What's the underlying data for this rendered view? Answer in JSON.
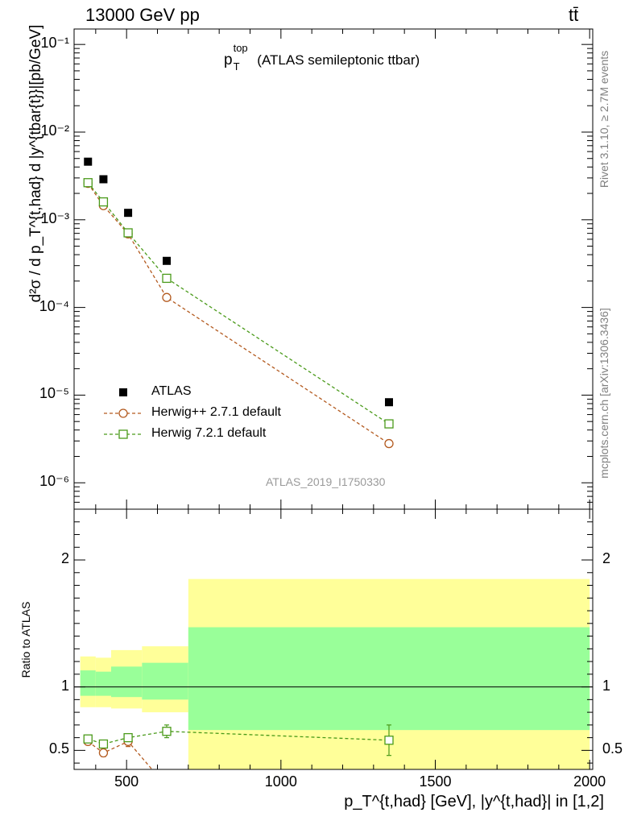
{
  "header": {
    "left": "13000 GeV pp",
    "right": "tt̄"
  },
  "side_texts": {
    "rivet": "Rivet 3.1.10, ≥ 2.7M events",
    "mcplots": "mcplots.cern.ch [arXiv:1306.3436]"
  },
  "chart_data": [
    {
      "type": "scatter",
      "title": "p_T^top (ATLAS semileptonic ttbar)",
      "title_main": "p",
      "title_sup": "top",
      "title_sub": "T",
      "title_rest": " (ATLAS semileptonic ttbar)",
      "ylabel": "d²σ / d p_T^{t,had} d |y^{tbar{t}}|[pb/GeV]",
      "watermark": "ATLAS_2019_I1750330",
      "yscale": "log",
      "ylim": [
        5e-07,
        0.15
      ],
      "xlim": [
        330,
        2010
      ],
      "ytick_labels": [
        "10⁻⁶",
        "10⁻⁵",
        "10⁻⁴",
        "10⁻³",
        "10⁻²",
        "10⁻¹"
      ],
      "legend_position": "lower-left",
      "series": [
        {
          "name": "ATLAS",
          "color": "#000000",
          "marker": "filled-square",
          "x": [
            375,
            425,
            505,
            630,
            1350
          ],
          "y": [
            0.0046,
            0.0029,
            0.0012,
            0.00034,
            8.3e-06
          ]
        },
        {
          "name": "Herwig++ 2.7.1 default",
          "color": "#b35a1f",
          "marker": "open-circle",
          "line": "dashed",
          "x": [
            375,
            425,
            505,
            630,
            1350
          ],
          "y": [
            0.0026,
            0.00145,
            0.00069,
            0.00013,
            2.8e-06
          ]
        },
        {
          "name": "Herwig 7.2.1 default",
          "color": "#4a9a1a",
          "marker": "open-square",
          "line": "dashed",
          "x": [
            375,
            425,
            505,
            630,
            1350
          ],
          "y": [
            0.00265,
            0.0016,
            0.00071,
            0.000215,
            4.7e-06
          ]
        }
      ]
    },
    {
      "type": "scatter",
      "ylabel": "Ratio to ATLAS",
      "xlabel": "p_T^{t,had} [GeV], |y^{t,had}| in [1,2]",
      "xlim": [
        330,
        2010
      ],
      "ylim": [
        0.35,
        2.4
      ],
      "xtick_labels": [
        "500",
        "1000",
        "1500",
        "2000"
      ],
      "ytick_labels": [
        "0.5",
        "1",
        "2"
      ],
      "bands": {
        "bin_edges": [
          350,
          400,
          450,
          550,
          700,
          2000
        ],
        "yellow_low": [
          0.84,
          0.84,
          0.83,
          0.8,
          0.35
        ],
        "yellow_high": [
          1.24,
          1.23,
          1.29,
          1.32,
          1.85
        ],
        "green_low": [
          0.93,
          0.93,
          0.92,
          0.9,
          0.66
        ],
        "green_high": [
          1.13,
          1.12,
          1.16,
          1.19,
          1.47
        ],
        "yellow_color": "#ffff99",
        "green_color": "#99ff99"
      },
      "series": [
        {
          "name": "Herwig++ 2.7.1 default",
          "color": "#b35a1f",
          "marker": "open-circle",
          "x": [
            375,
            425,
            505,
            600
          ],
          "y": [
            0.57,
            0.48,
            0.57,
            0.3
          ],
          "err": [
            0.02,
            0.03,
            0.04,
            0
          ]
        },
        {
          "name": "Herwig 7.2.1 default",
          "color": "#4a9a1a",
          "marker": "open-square",
          "x": [
            375,
            425,
            505,
            630,
            1350
          ],
          "y": [
            0.59,
            0.55,
            0.6,
            0.65,
            0.58
          ],
          "err": [
            0.02,
            0.03,
            0.03,
            0.05,
            0.12
          ]
        }
      ]
    }
  ]
}
